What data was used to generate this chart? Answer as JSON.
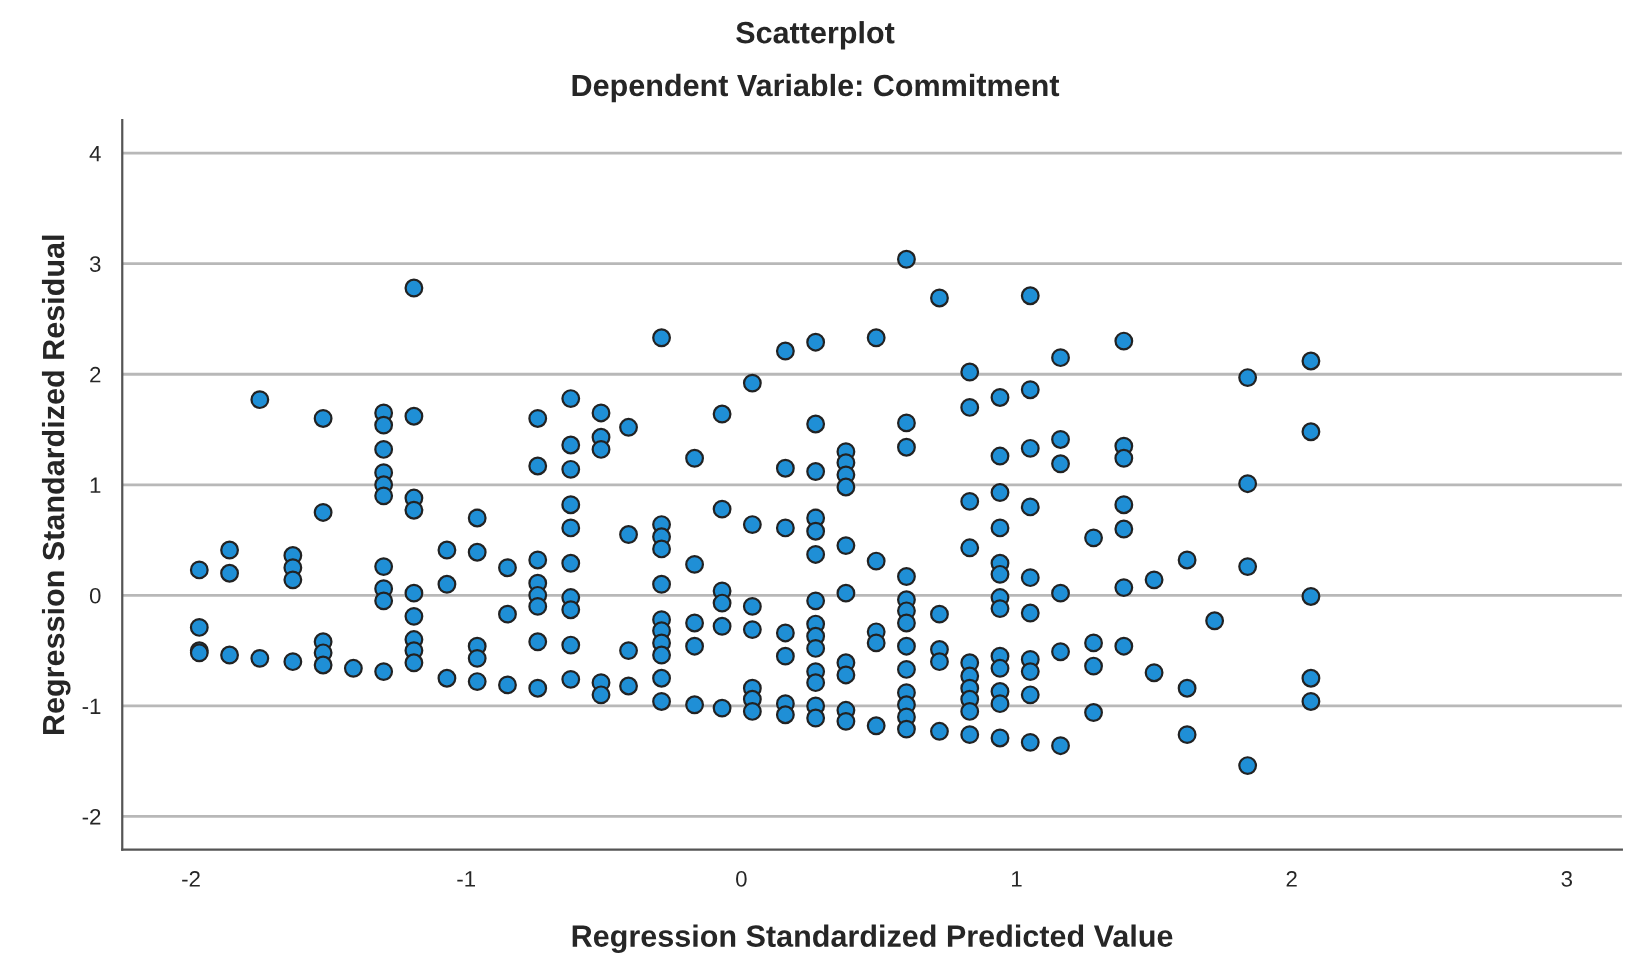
{
  "chart_data": {
    "type": "scatter",
    "title": "Scatterplot",
    "subtitle": "Dependent Variable: Commitment",
    "xlabel": "Regression Standardized Predicted Value",
    "ylabel": "Regression Standardized Residual",
    "series": [
      {
        "color": "#1f8fd6",
        "x": [
          -1.97,
          -1.97,
          -1.97,
          -1.97,
          -1.86,
          -1.86,
          -1.86,
          -1.75,
          -1.75,
          -1.63,
          -1.63,
          -1.63,
          -1.63,
          -1.52,
          -1.52,
          -1.52,
          -1.52,
          -1.52,
          -1.41,
          -1.3,
          -1.3,
          -1.3,
          -1.3,
          -1.3,
          -1.3,
          -1.3,
          -1.3,
          -1.3,
          -1.3,
          -1.19,
          -1.19,
          -1.19,
          -1.19,
          -1.19,
          -1.19,
          -1.19,
          -1.19,
          -1.19,
          -1.07,
          -1.07,
          -1.07,
          -0.96,
          -0.96,
          -0.96,
          -0.96,
          -0.96,
          -0.85,
          -0.85,
          -0.85,
          -0.74,
          -0.74,
          -0.74,
          -0.74,
          -0.74,
          -0.74,
          -0.74,
          -0.74,
          -0.62,
          -0.62,
          -0.62,
          -0.62,
          -0.62,
          -0.62,
          -0.62,
          -0.62,
          -0.62,
          -0.62,
          -0.51,
          -0.51,
          -0.51,
          -0.51,
          -0.51,
          -0.41,
          -0.41,
          -0.41,
          -0.41,
          -0.29,
          -0.29,
          -0.29,
          -0.29,
          -0.29,
          -0.29,
          -0.29,
          -0.29,
          -0.29,
          -0.29,
          -0.29,
          -0.17,
          -0.17,
          -0.17,
          -0.17,
          -0.17,
          -0.07,
          -0.07,
          -0.07,
          -0.07,
          -0.07,
          -0.07,
          0.04,
          0.04,
          0.04,
          0.04,
          0.04,
          0.04,
          0.04,
          0.16,
          0.16,
          0.16,
          0.16,
          0.16,
          0.16,
          0.16,
          0.27,
          0.27,
          0.27,
          0.27,
          0.27,
          0.27,
          0.27,
          0.27,
          0.27,
          0.27,
          0.27,
          0.27,
          0.27,
          0.27,
          0.38,
          0.38,
          0.38,
          0.38,
          0.38,
          0.38,
          0.38,
          0.38,
          0.38,
          0.38,
          0.49,
          0.49,
          0.49,
          0.49,
          0.49,
          0.6,
          0.6,
          0.6,
          0.6,
          0.6,
          0.6,
          0.6,
          0.6,
          0.6,
          0.6,
          0.6,
          0.6,
          0.6,
          0.72,
          0.72,
          0.72,
          0.72,
          0.72,
          0.83,
          0.83,
          0.83,
          0.83,
          0.83,
          0.83,
          0.83,
          0.83,
          0.83,
          0.83,
          0.94,
          0.94,
          0.94,
          0.94,
          0.94,
          0.94,
          0.94,
          0.94,
          0.94,
          0.94,
          0.94,
          0.94,
          0.94,
          1.05,
          1.05,
          1.05,
          1.05,
          1.05,
          1.05,
          1.05,
          1.05,
          1.05,
          1.05,
          1.16,
          1.16,
          1.16,
          1.16,
          1.16,
          1.16,
          1.28,
          1.28,
          1.28,
          1.28,
          1.39,
          1.39,
          1.39,
          1.39,
          1.39,
          1.39,
          1.39,
          1.5,
          1.5,
          1.62,
          1.62,
          1.62,
          1.72,
          1.84,
          1.84,
          1.84,
          1.84,
          2.07,
          2.07,
          2.07,
          2.07,
          2.07
        ],
        "values": [
          0.23,
          -0.29,
          -0.5,
          -0.52,
          0.41,
          0.2,
          -0.54,
          1.77,
          -0.57,
          0.36,
          0.25,
          0.14,
          -0.6,
          1.6,
          0.75,
          -0.42,
          -0.52,
          -0.63,
          -0.66,
          1.65,
          1.54,
          1.32,
          1.11,
          1.0,
          0.9,
          0.26,
          0.06,
          -0.05,
          -0.69,
          2.78,
          1.62,
          0.88,
          0.77,
          0.02,
          -0.19,
          -0.4,
          -0.5,
          -0.61,
          0.41,
          0.1,
          -0.75,
          0.7,
          0.39,
          -0.46,
          -0.57,
          -0.78,
          0.25,
          -0.17,
          -0.81,
          1.6,
          1.17,
          0.32,
          0.11,
          0.0,
          -0.1,
          -0.42,
          -0.84,
          1.78,
          1.36,
          1.14,
          0.82,
          0.61,
          0.29,
          -0.02,
          -0.13,
          -0.45,
          -0.76,
          1.65,
          1.43,
          1.32,
          -0.79,
          -0.9,
          1.52,
          0.55,
          -0.5,
          -0.82,
          2.33,
          0.64,
          0.53,
          0.42,
          0.1,
          -0.22,
          -0.32,
          -0.43,
          -0.54,
          -0.75,
          -0.96,
          1.24,
          0.28,
          -0.25,
          -0.46,
          -0.99,
          1.64,
          0.78,
          0.04,
          -0.07,
          -0.28,
          -1.02,
          1.92,
          0.64,
          -0.1,
          -0.31,
          -0.84,
          -0.94,
          -1.05,
          2.21,
          1.15,
          0.61,
          -0.34,
          -0.55,
          -0.98,
          -1.08,
          2.29,
          1.55,
          1.12,
          0.7,
          0.58,
          0.37,
          -0.05,
          -0.26,
          -0.37,
          -0.48,
          -0.69,
          -0.79,
          -1.0,
          -1.11,
          1.3,
          1.2,
          1.09,
          0.98,
          0.45,
          0.02,
          -0.61,
          -0.72,
          -1.04,
          -1.14,
          2.33,
          0.31,
          -0.33,
          -0.43,
          -1.18,
          3.04,
          1.56,
          1.34,
          0.17,
          -0.04,
          -0.14,
          -0.25,
          -0.46,
          -0.67,
          -0.88,
          -0.99,
          -1.1,
          -1.21,
          2.69,
          -0.17,
          -0.49,
          -0.6,
          -1.23,
          2.02,
          1.7,
          0.85,
          0.43,
          -0.61,
          -0.73,
          -0.84,
          -0.94,
          -1.05,
          -1.26,
          1.79,
          1.26,
          0.93,
          0.61,
          0.29,
          0.19,
          -0.02,
          -0.12,
          -0.55,
          -0.66,
          -0.87,
          -0.98,
          -1.29,
          2.71,
          1.86,
          1.33,
          0.8,
          0.16,
          -0.16,
          -0.58,
          -0.69,
          -0.9,
          -1.33,
          2.15,
          1.41,
          1.19,
          0.02,
          -0.51,
          -1.36,
          0.52,
          -0.43,
          -0.64,
          -1.06,
          2.3,
          1.35,
          1.24,
          0.82,
          0.6,
          0.07,
          -0.46,
          0.14,
          -0.7,
          0.32,
          -0.84,
          -1.26,
          -0.23,
          1.97,
          1.01,
          0.26,
          -1.54,
          2.12,
          1.48,
          -0.01,
          -0.75,
          -0.96
        ]
      }
    ],
    "xlim": [
      -2.25,
      3.2
    ],
    "ylim": [
      -2.3,
      4.3
    ],
    "xticks": [
      -2,
      -1,
      0,
      1,
      2,
      3
    ],
    "yticks": [
      -2,
      -1,
      0,
      1,
      2,
      3,
      4
    ],
    "grid": "y",
    "marker": "circle"
  }
}
